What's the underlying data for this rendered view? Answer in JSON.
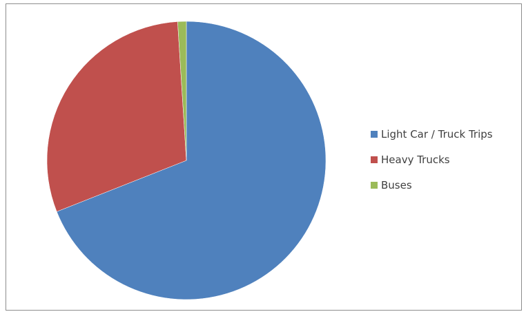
{
  "chart_data": {
    "type": "pie",
    "title": "",
    "legend_position": "right",
    "start_angle_deg": 0,
    "direction": "clockwise",
    "slices": [
      {
        "label": "Light Car / Truck Trips",
        "value": 69.0,
        "color": "#4F81BD"
      },
      {
        "label": "Heavy Trucks",
        "value": 30.0,
        "color": "#C0504D"
      },
      {
        "label": "Buses",
        "value": 1.0,
        "color": "#9BBB59"
      }
    ]
  }
}
